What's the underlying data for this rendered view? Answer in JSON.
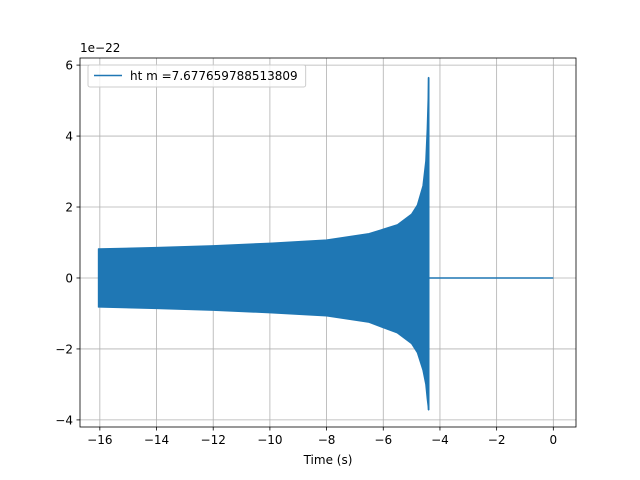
{
  "chart_data": {
    "type": "line",
    "title": "",
    "xlabel": "Time (s)",
    "ylabel": "",
    "y_offset_label": "1e−22",
    "xlim": [
      -16.7,
      0.8
    ],
    "ylim": [
      -4.2,
      6.2
    ],
    "x_ticks": [
      -16,
      -14,
      -12,
      -10,
      -8,
      -6,
      -4,
      -2,
      0
    ],
    "x_tick_labels": [
      "−16",
      "−14",
      "−12",
      "−10",
      "−8",
      "−6",
      "−4",
      "−2",
      "0"
    ],
    "y_ticks": [
      -4,
      -2,
      0,
      2,
      4,
      6
    ],
    "y_tick_labels": [
      "−4",
      "−2",
      "0",
      "2",
      "4",
      "6"
    ],
    "grid": true,
    "legend_placement": "upper-left",
    "series": [
      {
        "name": "ht m =7.677659788513809",
        "color": "#1f77b4",
        "envelope": {
          "x": [
            -16.05,
            -14,
            -12,
            -10,
            -8,
            -6.5,
            -5.5,
            -5.0,
            -4.8,
            -4.6,
            -4.5,
            -4.45,
            -4.42,
            -4.4
          ],
          "upper": [
            0.82,
            0.86,
            0.91,
            0.98,
            1.07,
            1.25,
            1.5,
            1.8,
            2.05,
            2.6,
            3.3,
            4.2,
            5.0,
            5.65
          ],
          "lower": [
            -0.82,
            -0.86,
            -0.91,
            -0.98,
            -1.07,
            -1.25,
            -1.55,
            -1.85,
            -2.1,
            -2.6,
            -3.0,
            -3.4,
            -3.6,
            -3.72
          ]
        },
        "start_spike": {
          "x": -16.05,
          "upper": 0.55,
          "lower": -0.8
        },
        "flat": {
          "x": [
            -4.4,
            0
          ],
          "y": [
            0,
            0
          ]
        }
      }
    ]
  }
}
